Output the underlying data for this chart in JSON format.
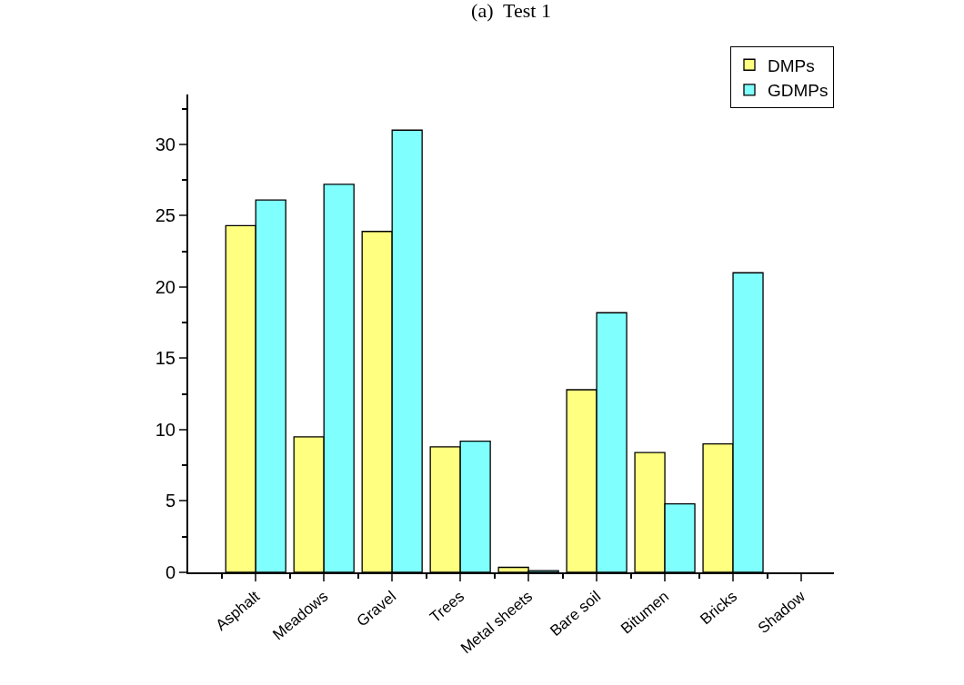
{
  "chart_data": {
    "type": "bar",
    "title": "(a)  Test 1",
    "categories": [
      "Asphalt",
      "Meadows",
      "Gravel",
      "Trees",
      "Metal sheets",
      "Bare soil",
      "Bitumen",
      "Bricks",
      "Shadow"
    ],
    "series": [
      {
        "name": "DMPs",
        "color": "#ffff80",
        "values": [
          24.3,
          9.5,
          23.9,
          8.8,
          0.35,
          12.8,
          8.4,
          9.0,
          0
        ]
      },
      {
        "name": "GDMPs",
        "color": "#80ffff",
        "values": [
          26.1,
          27.2,
          31.0,
          9.2,
          0.12,
          18.2,
          4.8,
          21.0,
          0
        ]
      }
    ],
    "ylim": [
      0,
      33.5
    ],
    "yticks": [
      0,
      5,
      10,
      15,
      20,
      25,
      30
    ],
    "grid": false,
    "legend": "top right"
  }
}
